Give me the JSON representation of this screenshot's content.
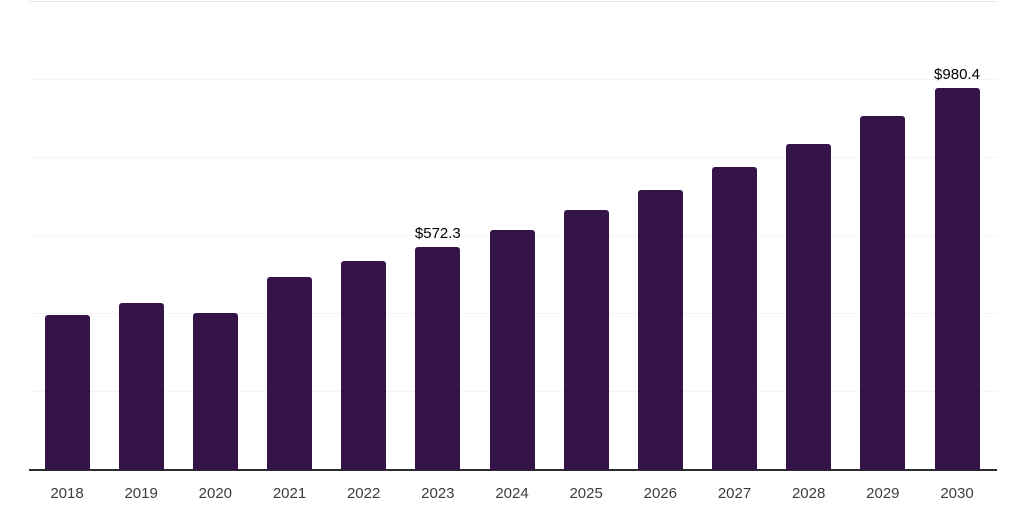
{
  "chart_data": {
    "type": "bar",
    "title": "",
    "xlabel": "",
    "ylabel": "",
    "categories": [
      "2018",
      "2019",
      "2020",
      "2021",
      "2022",
      "2023",
      "2024",
      "2025",
      "2026",
      "2027",
      "2028",
      "2029",
      "2030"
    ],
    "values": [
      397,
      429,
      403,
      494,
      535,
      572.3,
      616,
      666,
      717,
      776,
      837,
      908,
      980.4
    ],
    "data_labels": [
      null,
      null,
      null,
      null,
      null,
      "$572.3",
      null,
      null,
      null,
      null,
      null,
      null,
      "$980.4"
    ],
    "ylim": [
      0,
      1200
    ],
    "gridline_values": [
      200,
      400,
      600,
      800,
      1000,
      1200
    ],
    "grid": "horizontal-only",
    "legend": "none",
    "y_axis_tick_labels_visible": false,
    "colors": {
      "bar": "#341348",
      "axis_line": "#2b2b2b",
      "gridline": "#f4f4f4",
      "top_gridline": "#e7e7e7",
      "value_label": "#000000",
      "tick_label": "#3d3d3d",
      "background": "#ffffff"
    }
  }
}
